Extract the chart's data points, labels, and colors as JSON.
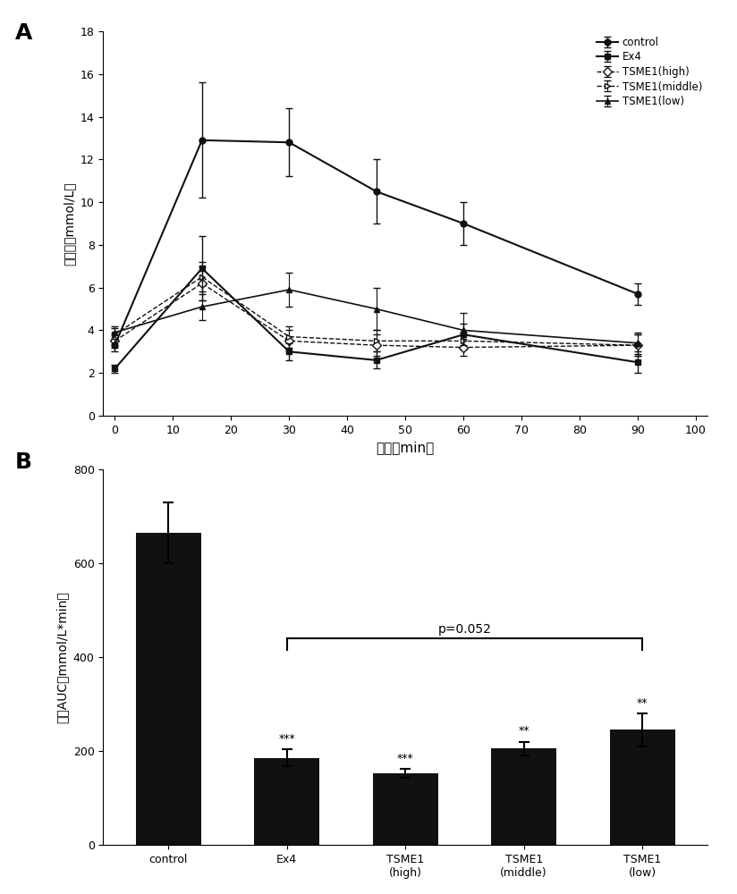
{
  "panel_A": {
    "x": [
      0,
      15,
      30,
      45,
      60,
      90
    ],
    "control": {
      "y": [
        3.3,
        12.9,
        12.8,
        10.5,
        9.0,
        5.7
      ],
      "yerr": [
        0.3,
        2.7,
        1.6,
        1.5,
        1.0,
        0.5
      ]
    },
    "Ex4": {
      "y": [
        2.2,
        6.9,
        3.0,
        2.6,
        3.8,
        2.5
      ],
      "yerr": [
        0.2,
        1.5,
        0.4,
        0.4,
        0.5,
        0.5
      ]
    },
    "TSME1_high": {
      "y": [
        3.5,
        6.2,
        3.5,
        3.3,
        3.2,
        3.3
      ],
      "yerr": [
        0.3,
        0.8,
        0.5,
        0.5,
        0.4,
        0.5
      ]
    },
    "TSME1_middle": {
      "y": [
        3.8,
        6.5,
        3.7,
        3.5,
        3.5,
        3.3
      ],
      "yerr": [
        0.3,
        0.7,
        0.5,
        0.5,
        0.4,
        0.5
      ]
    },
    "TSME1_low": {
      "y": [
        3.9,
        5.1,
        5.9,
        5.0,
        4.0,
        3.4
      ],
      "yerr": [
        0.3,
        0.6,
        0.8,
        1.0,
        0.8,
        0.5
      ]
    },
    "ylabel": "血糖浓（mmol/L）",
    "xlabel": "时间（min）",
    "ylim": [
      0,
      18
    ],
    "yticks": [
      0,
      2,
      4,
      6,
      8,
      10,
      12,
      14,
      16,
      18
    ],
    "xticks": [
      0,
      10,
      20,
      30,
      40,
      50,
      60,
      70,
      80,
      90,
      100
    ]
  },
  "panel_B": {
    "categories": [
      "control",
      "Ex4",
      "TSME1\n(high)",
      "TSME1\n(middle)",
      "TSME1\n(low)"
    ],
    "values": [
      665,
      185,
      152,
      205,
      245
    ],
    "yerr": [
      65,
      18,
      10,
      15,
      35
    ],
    "stars": [
      "",
      "***",
      "***",
      "**",
      "**"
    ],
    "ylabel": "血糖AUC（mmol/L*min）",
    "ylim": [
      0,
      800
    ],
    "yticks": [
      0,
      200,
      400,
      600,
      800
    ],
    "bar_color": "#111111",
    "bracket_x1": 1,
    "bracket_x2": 4,
    "bracket_y": 440,
    "bracket_tick": 25,
    "pvalue_text": "p=0.052",
    "pvalue_y": 445
  },
  "label_A": "A",
  "label_B": "B",
  "background_color": "#ffffff",
  "line_color": "#111111"
}
